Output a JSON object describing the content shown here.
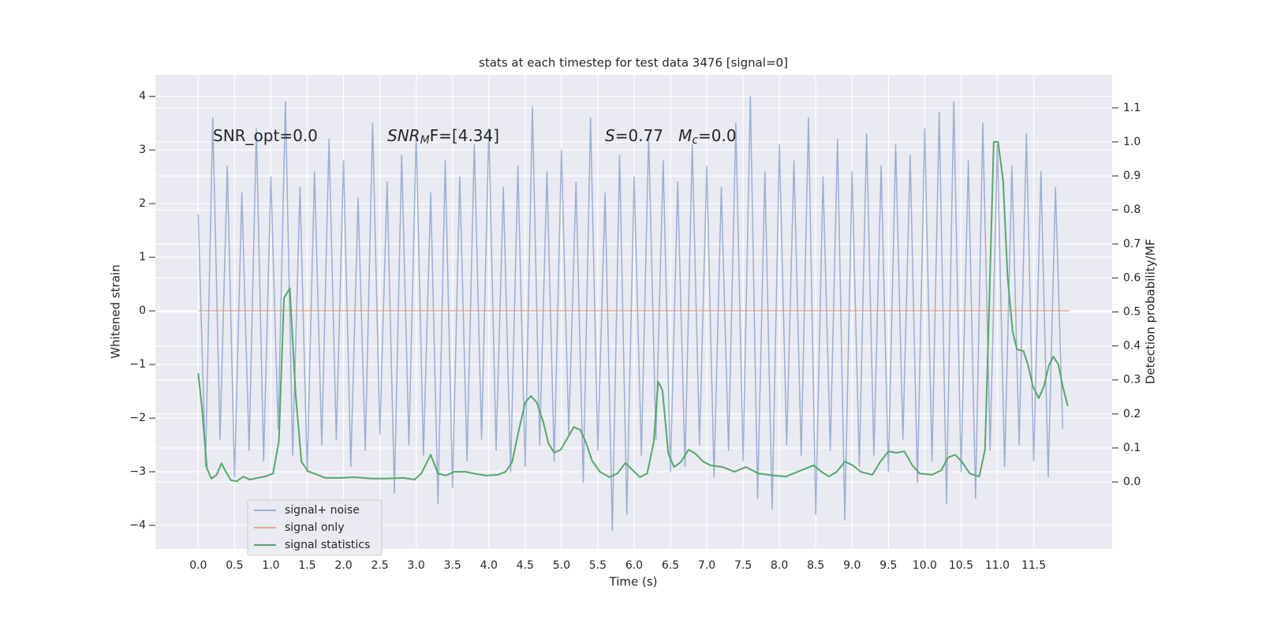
{
  "chart_data": {
    "type": "line",
    "title": "stats at each timestep for test data 3476 [signal=0]",
    "xlabel": "Time (s)",
    "ylabel": "Whitened strain",
    "y2label": "Detection probability/MF",
    "background": "#eaeaf2",
    "grid": true,
    "legend_loc": "lower left",
    "annotations": [
      {
        "parts": [
          {
            "text": "SNR_opt=0.0"
          }
        ]
      },
      {
        "parts": [
          {
            "text": "SNR",
            "italic": true
          },
          {
            "text": "M",
            "italic": true,
            "sub": true
          },
          {
            "text": "F=[4.34]"
          }
        ]
      },
      {
        "parts": [
          {
            "text": "S",
            "italic": true
          },
          {
            "text": "=0.77   "
          },
          {
            "text": "M",
            "italic": true
          },
          {
            "text": "c",
            "italic": true,
            "sub": true
          },
          {
            "text": "=0.0"
          }
        ]
      }
    ],
    "xlim": [
      -0.59,
      12.58
    ],
    "ylim": [
      -4.44,
      4.4
    ],
    "y2lim": [
      -0.197,
      1.197
    ],
    "xticks": [
      {
        "value": 0,
        "label": "0.0"
      },
      {
        "value": 0.5,
        "label": "0.5"
      },
      {
        "value": 1,
        "label": "1.0"
      },
      {
        "value": 1.5,
        "label": "1.5"
      },
      {
        "value": 2,
        "label": "2.0"
      },
      {
        "value": 2.5,
        "label": "2.5"
      },
      {
        "value": 3,
        "label": "3.0"
      },
      {
        "value": 3.5,
        "label": "3.5"
      },
      {
        "value": 4,
        "label": "4.0"
      },
      {
        "value": 4.5,
        "label": "4.5"
      },
      {
        "value": 5,
        "label": "5.0"
      },
      {
        "value": 5.5,
        "label": "5.5"
      },
      {
        "value": 6,
        "label": "6.0"
      },
      {
        "value": 6.5,
        "label": "6.5"
      },
      {
        "value": 7,
        "label": "7.0"
      },
      {
        "value": 7.5,
        "label": "7.5"
      },
      {
        "value": 8,
        "label": "8.0"
      },
      {
        "value": 8.5,
        "label": "8.5"
      },
      {
        "value": 9,
        "label": "9.0"
      },
      {
        "value": 9.5,
        "label": "9.5"
      },
      {
        "value": 10,
        "label": "10.0"
      },
      {
        "value": 10.5,
        "label": "10.5"
      },
      {
        "value": 11,
        "label": "11.0"
      },
      {
        "value": 11.5,
        "label": "11.5"
      }
    ],
    "yticks": [
      {
        "value": -4,
        "label": "−4"
      },
      {
        "value": -3,
        "label": "−3"
      },
      {
        "value": -2,
        "label": "−2"
      },
      {
        "value": -1,
        "label": "−1"
      },
      0,
      1,
      2,
      3,
      4
    ],
    "y2ticks": [
      {
        "value": 0,
        "label": "0.0"
      },
      {
        "value": 0.1,
        "label": "0.1"
      },
      {
        "value": 0.2,
        "label": "0.2"
      },
      {
        "value": 0.3,
        "label": "0.3"
      },
      {
        "value": 0.4,
        "label": "0.4"
      },
      {
        "value": 0.5,
        "label": "0.5"
      },
      {
        "value": 0.6,
        "label": "0.6"
      },
      {
        "value": 0.7,
        "label": "0.7"
      },
      {
        "value": 0.8,
        "label": "0.8"
      },
      {
        "value": 0.9,
        "label": "0.9"
      },
      {
        "value": 1,
        "label": "1.0"
      },
      {
        "value": 1.1,
        "label": "1.1"
      }
    ],
    "series": [
      {
        "name": "signal+ noise",
        "color": "#4c72b0",
        "opacity": 0.5,
        "x": [
          0,
          0.1,
          0.2,
          0.3,
          0.4,
          0.5,
          0.6,
          0.7,
          0.8,
          0.9,
          1,
          1.1,
          1.2,
          1.3,
          1.4,
          1.5,
          1.6,
          1.7,
          1.8,
          1.9,
          2,
          2.1,
          2.2,
          2.3,
          2.4,
          2.5,
          2.6,
          2.7,
          2.8,
          2.9,
          3,
          3.1,
          3.2,
          3.3,
          3.4,
          3.5,
          3.6,
          3.7,
          3.8,
          3.9,
          4,
          4.1,
          4.2,
          4.3,
          4.4,
          4.5,
          4.6,
          4.7,
          4.8,
          4.9,
          5,
          5.1,
          5.2,
          5.3,
          5.4,
          5.5,
          5.6,
          5.7,
          5.8,
          5.9,
          6,
          6.1,
          6.2,
          6.3,
          6.4,
          6.5,
          6.6,
          6.7,
          6.8,
          6.9,
          7,
          7.1,
          7.2,
          7.3,
          7.4,
          7.5,
          7.6,
          7.7,
          7.8,
          7.9,
          8,
          8.1,
          8.2,
          8.3,
          8.4,
          8.5,
          8.6,
          8.7,
          8.8,
          8.9,
          9,
          9.1,
          9.2,
          9.3,
          9.4,
          9.5,
          9.6,
          9.7,
          9.8,
          9.9,
          10,
          10.1,
          10.2,
          10.3,
          10.4,
          10.5,
          10.6,
          10.7,
          10.8,
          10.9,
          11,
          11.1,
          11.2,
          11.3,
          11.4,
          11.5,
          11.6,
          11.7,
          11.8,
          11.9
        ],
        "values": [
          1.8,
          -2.9,
          3.6,
          -2.4,
          2.7,
          -3.1,
          2.2,
          -2.6,
          3.4,
          -2.8,
          2.5,
          -2.2,
          3.9,
          -2.7,
          2.3,
          -3.0,
          2.6,
          -2.5,
          3.2,
          -2.4,
          2.8,
          -2.9,
          2.1,
          -2.6,
          3.5,
          -2.3,
          2.4,
          -3.4,
          2.9,
          -2.5,
          3.3,
          -2.7,
          2.2,
          -3.6,
          2.8,
          -3.3,
          2.5,
          -2.8,
          3.1,
          -2.4,
          3.4,
          -2.6,
          2.3,
          -3.0,
          2.7,
          -2.9,
          3.8,
          -2.5,
          2.6,
          -2.8,
          3.0,
          -2.3,
          2.4,
          -3.2,
          3.6,
          -2.6,
          2.2,
          -4.1,
          2.9,
          -3.8,
          2.5,
          -2.7,
          3.3,
          -2.4,
          2.8,
          -3.0,
          2.4,
          -2.9,
          3.1,
          -2.5,
          2.7,
          -3.1,
          2.3,
          -2.6,
          3.5,
          -2.8,
          4.0,
          -3.5,
          2.6,
          -3.7,
          3.1,
          -2.5,
          2.8,
          -2.7,
          3.6,
          -3.8,
          2.5,
          -2.6,
          3.2,
          -3.9,
          2.6,
          -2.9,
          3.3,
          -2.7,
          2.7,
          -3.0,
          3.1,
          -2.4,
          2.9,
          -3.2,
          3.4,
          -2.8,
          3.7,
          -3.6,
          3.9,
          -3.0,
          2.8,
          -3.5,
          3.5,
          -2.6,
          3.1,
          -2.9,
          2.7,
          -2.5,
          3.3,
          -2.8,
          2.6,
          -3.1,
          2.3,
          -2.2
        ]
      },
      {
        "name": "signal only",
        "color": "#dd8452",
        "opacity": 0.6,
        "x": [
          0,
          11.99
        ],
        "values": [
          0,
          0
        ]
      },
      {
        "name": "signal statistics",
        "color": "#55a868",
        "opacity": 1,
        "axis": "y2",
        "x": [
          0,
          0.05,
          0.12,
          0.18,
          0.25,
          0.32,
          0.38,
          0.45,
          0.53,
          0.62,
          0.71,
          0.82,
          0.92,
          1.03,
          1.11,
          1.18,
          1.26,
          1.34,
          1.42,
          1.51,
          1.62,
          1.75,
          1.95,
          2.16,
          2.38,
          2.6,
          2.82,
          2.98,
          3.07,
          3.2,
          3.3,
          3.41,
          3.52,
          3.68,
          3.79,
          3.96,
          4.12,
          4.23,
          4.32,
          4.4,
          4.5,
          4.58,
          4.66,
          4.75,
          4.82,
          4.9,
          4.99,
          5.08,
          5.17,
          5.26,
          5.34,
          5.42,
          5.53,
          5.66,
          5.77,
          5.88,
          5.97,
          6.08,
          6.18,
          6.27,
          6.33,
          6.39,
          6.47,
          6.55,
          6.64,
          6.75,
          6.84,
          6.95,
          7.05,
          7.22,
          7.38,
          7.54,
          7.71,
          7.92,
          8.09,
          8.25,
          8.47,
          8.58,
          8.68,
          8.79,
          8.9,
          9.01,
          9.12,
          9.28,
          9.39,
          9.5,
          9.61,
          9.72,
          9.83,
          9.93,
          10.1,
          10.23,
          10.32,
          10.42,
          10.51,
          10.62,
          10.75,
          10.83,
          10.89,
          10.95,
          11.01,
          11.08,
          11.14,
          11.21,
          11.27,
          11.36,
          11.42,
          11.49,
          11.57,
          11.64,
          11.71,
          11.77,
          11.84,
          11.9,
          11.97
        ],
        "values": [
          0.32,
          0.22,
          0.04,
          0.01,
          0.02,
          0.055,
          0.03,
          0.005,
          0.002,
          0.016,
          0.007,
          0.012,
          0.016,
          0.025,
          0.12,
          0.54,
          0.57,
          0.26,
          0.06,
          0.032,
          0.023,
          0.012,
          0.012,
          0.014,
          0.01,
          0.01,
          0.012,
          0.007,
          0.025,
          0.08,
          0.025,
          0.019,
          0.03,
          0.03,
          0.025,
          0.019,
          0.021,
          0.03,
          0.058,
          0.14,
          0.234,
          0.253,
          0.234,
          0.176,
          0.114,
          0.086,
          0.095,
          0.128,
          0.162,
          0.153,
          0.114,
          0.063,
          0.03,
          0.014,
          0.025,
          0.056,
          0.037,
          0.014,
          0.025,
          0.118,
          0.295,
          0.27,
          0.084,
          0.044,
          0.058,
          0.095,
          0.084,
          0.06,
          0.049,
          0.044,
          0.03,
          0.044,
          0.025,
          0.019,
          0.016,
          0.03,
          0.049,
          0.03,
          0.016,
          0.03,
          0.06,
          0.049,
          0.03,
          0.021,
          0.06,
          0.09,
          0.086,
          0.09,
          0.049,
          0.025,
          0.021,
          0.035,
          0.072,
          0.08,
          0.06,
          0.025,
          0.016,
          0.095,
          0.536,
          1.0,
          1.0,
          0.884,
          0.605,
          0.443,
          0.39,
          0.385,
          0.346,
          0.281,
          0.246,
          0.281,
          0.343,
          0.369,
          0.346,
          0.281,
          0.223
        ]
      }
    ]
  }
}
